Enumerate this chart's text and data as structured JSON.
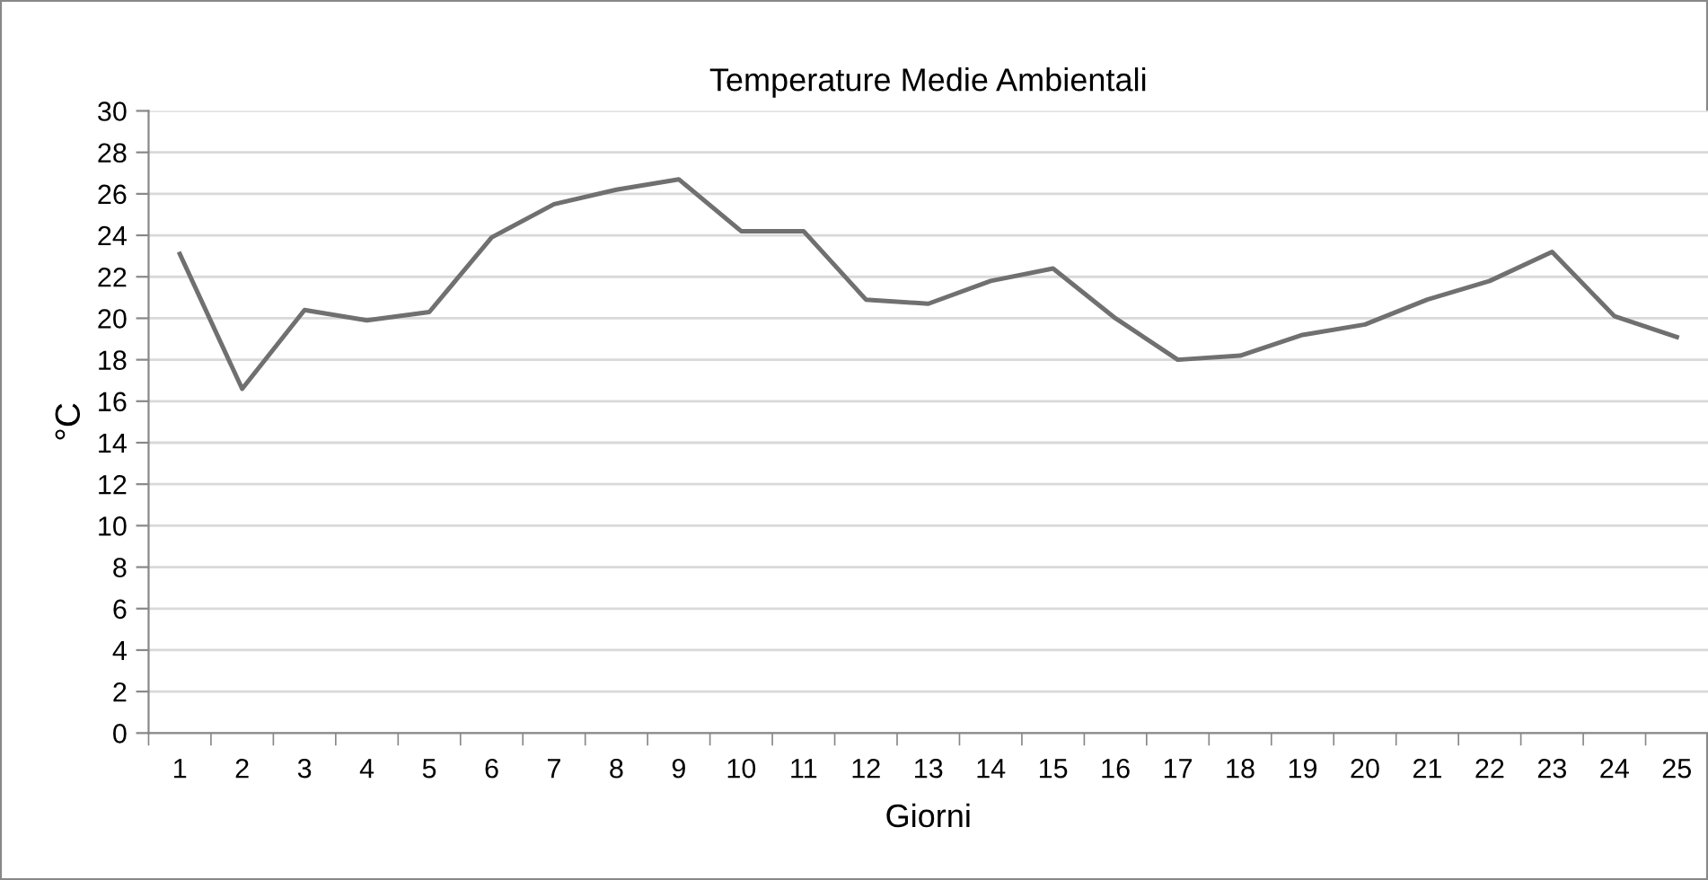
{
  "chart_data": {
    "type": "line",
    "title": "Temperature Medie Ambientali",
    "xlabel": "Giorni",
    "ylabel": "°C",
    "categories": [
      "1",
      "2",
      "3",
      "4",
      "5",
      "6",
      "7",
      "8",
      "9",
      "10",
      "11",
      "12",
      "13",
      "14",
      "15",
      "16",
      "17",
      "18",
      "19",
      "20",
      "21",
      "22",
      "23",
      "24",
      "25"
    ],
    "series": [
      {
        "color": "#707070",
        "values": [
          23.1,
          16.6,
          20.4,
          19.9,
          20.3,
          23.9,
          25.5,
          26.2,
          26.7,
          24.2,
          24.2,
          20.9,
          20.7,
          21.8,
          22.4,
          20.0,
          18.0,
          18.2,
          19.2,
          19.7,
          20.9,
          21.8,
          23.2,
          20.1,
          19.1
        ]
      }
    ],
    "ylim": [
      0,
      30
    ],
    "yticks": [
      0,
      2,
      4,
      6,
      8,
      10,
      12,
      14,
      16,
      18,
      20,
      22,
      24,
      26,
      28,
      30
    ],
    "grid": "y",
    "legend": false,
    "marker": "none",
    "line_style": "solid"
  }
}
